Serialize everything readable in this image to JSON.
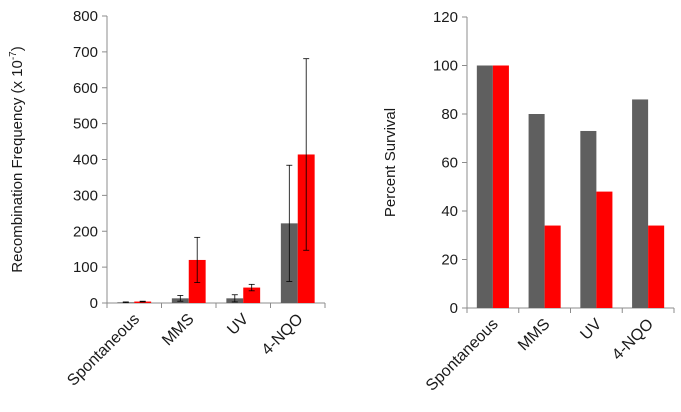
{
  "chart_data": [
    {
      "type": "bar",
      "title": "",
      "xlabel": "",
      "ylabel": "Recombination Frequency (x 10",
      "ylabel_exponent": "-7",
      "ylabel_suffix": ")",
      "categories": [
        "Spontaneous",
        "MMS",
        "UV",
        "4-NQO"
      ],
      "ylim": [
        0,
        800
      ],
      "yticks": [
        0,
        100,
        200,
        300,
        400,
        500,
        600,
        700,
        800
      ],
      "grid": false,
      "legend": "none",
      "series": [
        {
          "color": "#5f5f5f",
          "values": [
            2,
            13,
            13,
            222
          ],
          "errors": [
            1,
            8,
            10,
            162
          ]
        },
        {
          "color": "#ff0000",
          "values": [
            4,
            120,
            43,
            414
          ],
          "errors": [
            1,
            63,
            9,
            267
          ]
        }
      ]
    },
    {
      "type": "bar",
      "title": "",
      "xlabel": "",
      "ylabel": "Percent Survival",
      "categories": [
        "Spontaneous",
        "MMS",
        "UV",
        "4-NQO"
      ],
      "ylim": [
        0,
        120
      ],
      "yticks": [
        0,
        20,
        40,
        60,
        80,
        100,
        120
      ],
      "grid": false,
      "legend": "none",
      "series": [
        {
          "color": "#5f5f5f",
          "values": [
            100,
            80,
            73,
            86
          ]
        },
        {
          "color": "#ff0000",
          "values": [
            100,
            34,
            48,
            34
          ]
        }
      ]
    }
  ]
}
